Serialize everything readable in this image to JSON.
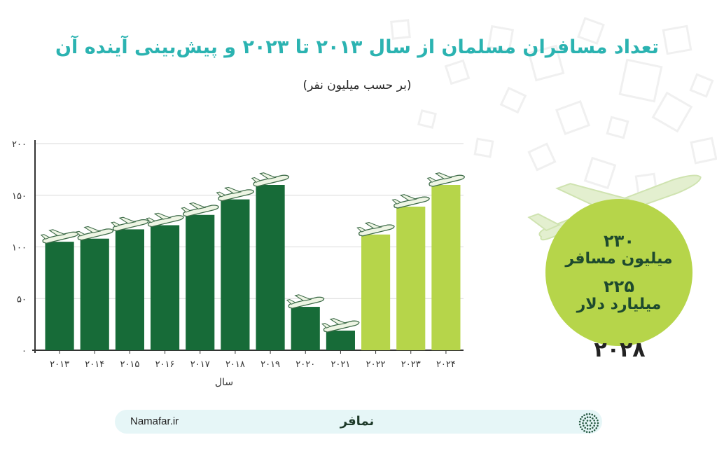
{
  "title": "تعداد مسافران مسلمان از سال ۲۰۱۳ تا ۲۰۲۳ و پیش‌بینی آینده آن",
  "subtitle": "(بر حسب میلیون نفر)",
  "colors": {
    "actual": "#176b38",
    "forecast": "#b6d54a",
    "accent": "#2bb3b1",
    "circle": "#b6d54a"
  },
  "chart_data": {
    "type": "bar",
    "categories": [
      "۲۰۱۳",
      "۲۰۱۴",
      "۲۰۱۵",
      "۲۰۱۶",
      "۲۰۱۷",
      "۲۰۱۸",
      "۲۰۱۹",
      "۲۰۲۰",
      "۲۰۲۱",
      "۲۰۲۲",
      "۲۰۲۳",
      "۲۰۲۴"
    ],
    "values": [
      105,
      108,
      117,
      121,
      131,
      146,
      160,
      42,
      19,
      112,
      139,
      160
    ],
    "forecast": [
      false,
      false,
      false,
      false,
      false,
      false,
      false,
      false,
      false,
      true,
      true,
      true
    ],
    "xlabel": "سال",
    "ylabel": "",
    "yticks": [
      0,
      50,
      100,
      150,
      200
    ],
    "ytick_labels": [
      "۰",
      "۵۰",
      "۱۰۰",
      "۱۵۰",
      "۲۰۰"
    ],
    "ylim": [
      0,
      200
    ],
    "grid": true
  },
  "highlight": {
    "passengers_value": "۲۳۰",
    "passengers_label": "میلیون مسافر",
    "spending_value": "۲۲۵",
    "spending_label": "میلیارد دلار",
    "year": "۲۰۲۸"
  },
  "footer": {
    "site": "Namafar.ir",
    "brand": "نمافر"
  },
  "icons": [
    "airplane-icon",
    "namafar-logo-icon"
  ]
}
